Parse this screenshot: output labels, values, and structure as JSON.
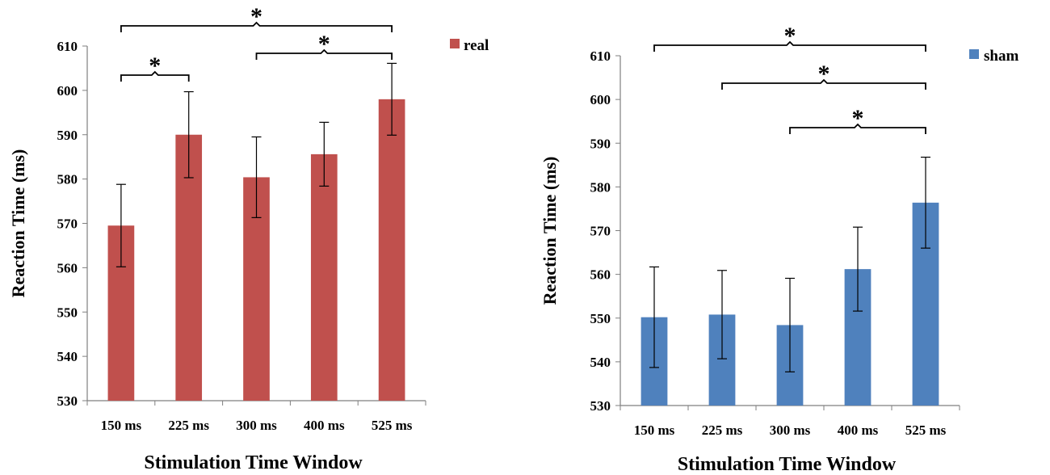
{
  "chart_data": [
    {
      "type": "bar",
      "categories": [
        "150 ms",
        "225 ms",
        "300 ms",
        "400 ms",
        "525 ms"
      ],
      "series": [
        {
          "name": "real",
          "values": [
            569.5,
            590.0,
            580.4,
            585.6,
            598.0
          ],
          "errors": [
            9.3,
            9.7,
            9.1,
            7.2,
            8.1
          ]
        }
      ],
      "xlabel": "Stimulation Time Window",
      "ylabel": "Reaction Time (ms)",
      "ylim": [
        530,
        610
      ],
      "yticks": [
        530,
        540,
        550,
        560,
        570,
        580,
        590,
        600,
        610
      ],
      "color": "#c0504d",
      "legend_position": "top-right",
      "significance": [
        {
          "from": "150 ms",
          "to": "525 ms",
          "label": "*"
        },
        {
          "from": "300 ms",
          "to": "525 ms",
          "label": "*"
        },
        {
          "from": "150 ms",
          "to": "225 ms",
          "label": "*"
        }
      ]
    },
    {
      "type": "bar",
      "categories": [
        "150 ms",
        "225 ms",
        "300 ms",
        "400 ms",
        "525 ms"
      ],
      "series": [
        {
          "name": "sham",
          "values": [
            550.2,
            550.8,
            548.4,
            561.2,
            576.4
          ],
          "errors": [
            11.5,
            10.1,
            10.7,
            9.6,
            10.4
          ]
        }
      ],
      "xlabel": "Stimulation Time Window",
      "ylabel": "Reaction Time (ms)",
      "ylim": [
        530,
        610
      ],
      "yticks": [
        530,
        540,
        550,
        560,
        570,
        580,
        590,
        600,
        610
      ],
      "color": "#4f81bd",
      "legend_position": "top-right",
      "significance": [
        {
          "from": "150 ms",
          "to": "525 ms",
          "label": "*"
        },
        {
          "from": "225 ms",
          "to": "525 ms",
          "label": "*"
        },
        {
          "from": "300 ms",
          "to": "525 ms",
          "label": "*"
        }
      ]
    }
  ]
}
